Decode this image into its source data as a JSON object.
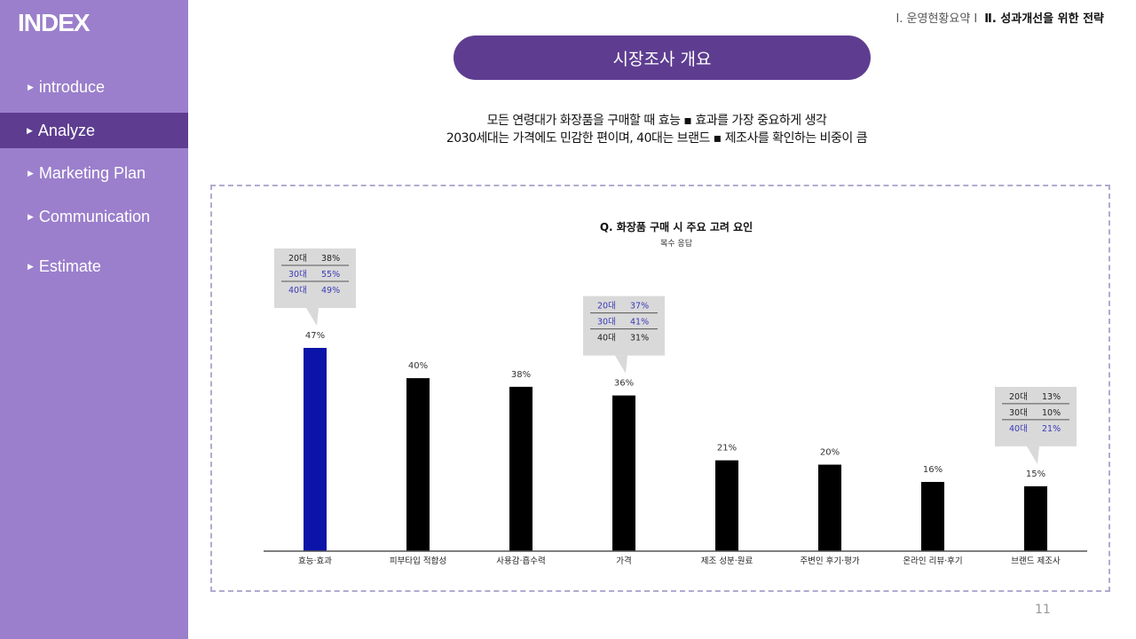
{
  "sidebar": {
    "title": "INDEX",
    "items": [
      {
        "label": "introduce"
      },
      {
        "label": "Analyze"
      },
      {
        "label": "Marketing Plan"
      },
      {
        "label": "Communication"
      },
      {
        "label": "Estimate"
      }
    ],
    "active_index": 1,
    "colors": {
      "background": "#9b7fcc",
      "active": "#5e3d91"
    }
  },
  "header": {
    "breadcrumb_1": "Ⅰ. 운영현황요약 Ⅰ",
    "breadcrumb_2": "Ⅱ. 성과개선을 위한 전략",
    "title": "시장조사 개요"
  },
  "summary": {
    "line1": "모든 연령대가 화장품을 구매할 때 효능 ▪ 효과를 가장 중요하게 생각",
    "line2": "2030세대는 가격에도 민감한 편이며, 40대는 브랜드 ▪ 제조사를 확인하는 비중이 큼"
  },
  "page_number": "11",
  "chart_data": {
    "type": "bar",
    "title": "Q. 화장품 구매 시 주요 고려 요인",
    "subtitle": "복수 응답",
    "categories": [
      "효능·효과",
      "피부타입 적합성",
      "사용감·흡수력",
      "가격",
      "제조 성분·원료",
      "주변인 후기·평가",
      "온라인 리뷰·후기",
      "브랜드 제조사"
    ],
    "values": [
      47,
      40,
      38,
      36,
      21,
      20,
      16,
      15
    ],
    "value_labels": [
      "47%",
      "40%",
      "38%",
      "36%",
      "21%",
      "20%",
      "16%",
      "15%"
    ],
    "ylim": [
      0,
      50
    ],
    "highlight_index": 0,
    "colors": {
      "bar": "#000000",
      "highlight": "#0a14a8",
      "callout_bg": "#d9d9d9",
      "callout_highlight_text": "#3a3ab8"
    },
    "callouts": [
      {
        "category_index": 0,
        "rows": [
          {
            "age": "20대",
            "value": "38%",
            "highlight": false
          },
          {
            "age": "30대",
            "value": "55%",
            "highlight": true
          },
          {
            "age": "40대",
            "value": "49%",
            "highlight": true
          }
        ]
      },
      {
        "category_index": 3,
        "rows": [
          {
            "age": "20대",
            "value": "37%",
            "highlight": true
          },
          {
            "age": "30대",
            "value": "41%",
            "highlight": true
          },
          {
            "age": "40대",
            "value": "31%",
            "highlight": false
          }
        ]
      },
      {
        "category_index": 7,
        "rows": [
          {
            "age": "20대",
            "value": "13%",
            "highlight": false
          },
          {
            "age": "30대",
            "value": "10%",
            "highlight": false
          },
          {
            "age": "40대",
            "value": "21%",
            "highlight": true
          }
        ]
      }
    ]
  }
}
